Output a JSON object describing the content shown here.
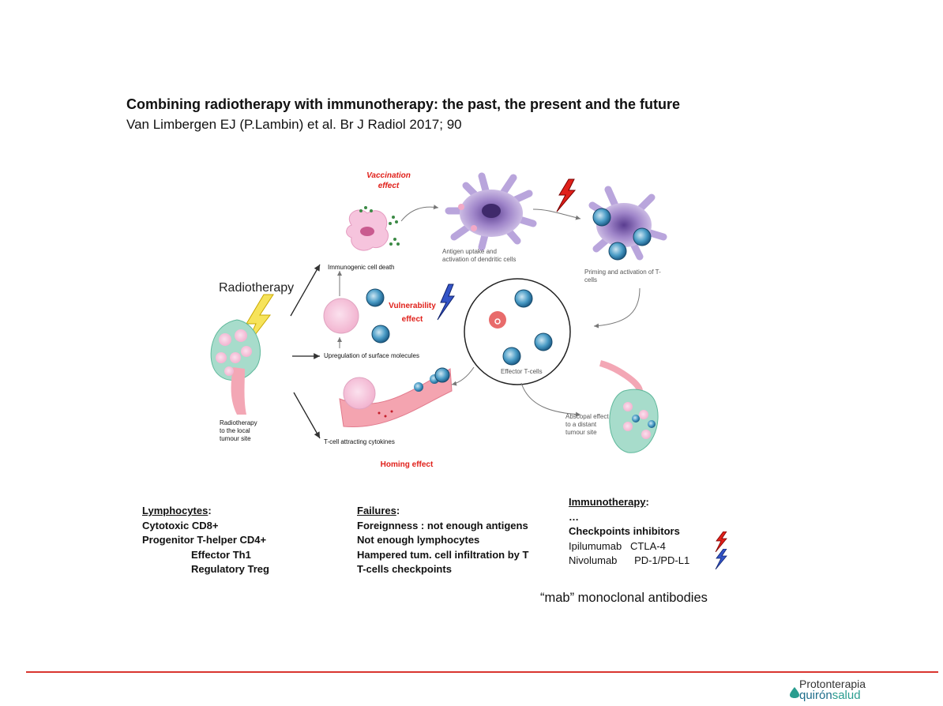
{
  "header": {
    "title": "Combining radiotherapy with immunotherapy: the past, the present and the future",
    "subtitle": "Van Limbergen EJ (P.Lambin) et al. Br J Radiol 2017; 90"
  },
  "diagram": {
    "radiotherapy": "Radiotherapy",
    "local_site": [
      "Radiotherapy",
      "to the local",
      "tumour site"
    ],
    "vaccination": [
      "Vaccination",
      "effect"
    ],
    "vulnerability": [
      "Vulnerability",
      "effect"
    ],
    "homing": "Homing  effect",
    "immunogenic": "Immunogenic cell death",
    "upregulation": "Upregulation of surface molecules",
    "tcell_cytokines": "T-cell attracting cytokines",
    "antigen_uptake": [
      "Antigen uptake and",
      "activation of dendritic cells"
    ],
    "priming": [
      "Priming and activation of T-",
      "cells"
    ],
    "effector": "Effector T-cells",
    "abscopal": [
      "Abscopal effect",
      "to a distant",
      "tumour site"
    ]
  },
  "lymphocytes": {
    "heading": "Lymphocytes",
    "lines": [
      "Cytotoxic CD8+",
      "Progenitor T-helper CD4+"
    ],
    "sub": [
      "Effector Th1",
      "Regulatory Treg"
    ]
  },
  "failures": {
    "heading": "Failures",
    "lines": [
      "Foreignness : not enough antigens",
      "Not enough lymphocytes",
      "Hampered tum. cell infiltration by T",
      "T-cells checkpoints"
    ]
  },
  "immunotherapy": {
    "heading": "Immunotherapy",
    "ellipsis": "…",
    "checkpoints": "Checkpoints inhibitors",
    "drug1_name": "Ipilumumab",
    "drug1_target": "CTLA-4",
    "drug2_name": "Nivolumab",
    "drug2_target": "PD-1/PD-L1"
  },
  "mab": "“mab” monoclonal antibodies",
  "logo": {
    "top": "Protonterapia",
    "bottom_a": "quirón",
    "bottom_b": "salud"
  },
  "colors": {
    "accent_red": "#e0201a",
    "footer_line": "#d9352f",
    "teal": "#2a9d8f"
  }
}
